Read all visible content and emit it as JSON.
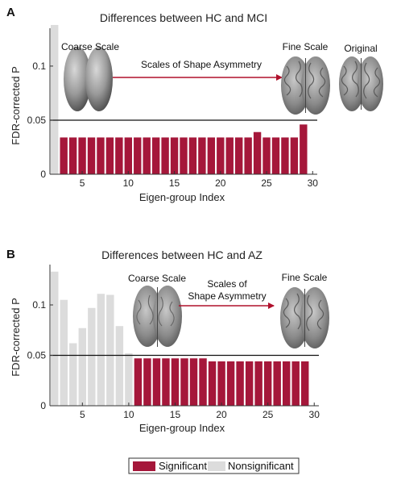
{
  "colors": {
    "significant": "#a5173a",
    "nonsignificant": "#dcdcdc",
    "threshold": "#111111",
    "arrow": "#b0102c"
  },
  "legend": {
    "significant": "Significant",
    "nonsignificant": "Nonsignificant"
  },
  "chart_data": [
    {
      "panel": "A",
      "type": "bar",
      "title": "Differences between HC and MCI",
      "xlabel": "Eigen-group Index",
      "ylabel": "FDR-corrected P",
      "xlim": [
        1.5,
        30.5
      ],
      "ylim": [
        0,
        0.135
      ],
      "xticks": [
        5,
        10,
        15,
        20,
        25,
        30
      ],
      "yticks": [
        0,
        0.05,
        0.1
      ],
      "ytick_labels": [
        "0",
        "0.05",
        "0.1"
      ],
      "threshold": 0.05,
      "x": [
        2,
        3,
        4,
        5,
        6,
        7,
        8,
        9,
        10,
        11,
        12,
        13,
        14,
        15,
        16,
        17,
        18,
        19,
        20,
        21,
        22,
        23,
        24,
        25,
        26,
        27,
        28,
        29
      ],
      "values": [
        0.138,
        0.034,
        0.034,
        0.034,
        0.034,
        0.034,
        0.034,
        0.034,
        0.034,
        0.034,
        0.034,
        0.034,
        0.034,
        0.034,
        0.034,
        0.034,
        0.034,
        0.034,
        0.034,
        0.034,
        0.034,
        0.034,
        0.039,
        0.034,
        0.034,
        0.034,
        0.034,
        0.046
      ],
      "significant": [
        false,
        true,
        true,
        true,
        true,
        true,
        true,
        true,
        true,
        true,
        true,
        true,
        true,
        true,
        true,
        true,
        true,
        true,
        true,
        true,
        true,
        true,
        true,
        true,
        true,
        true,
        true,
        true
      ],
      "annotations": {
        "coarse": "Coarse Scale",
        "arrow": [
          "Scales of Shape Asymmetry"
        ],
        "fine": "Fine Scale",
        "original": "Original"
      }
    },
    {
      "panel": "B",
      "type": "bar",
      "title": "Differences between HC and AZ",
      "xlabel": "Eigen-group Index",
      "ylabel": "FDR-corrected P",
      "xlim": [
        1.5,
        30.5
      ],
      "ylim": [
        0,
        0.14
      ],
      "xticks": [
        5,
        10,
        15,
        20,
        25,
        30
      ],
      "yticks": [
        0,
        0.05,
        0.1
      ],
      "ytick_labels": [
        "0",
        "0.05",
        "0.1"
      ],
      "threshold": 0.05,
      "x": [
        2,
        3,
        4,
        5,
        6,
        7,
        8,
        9,
        10,
        11,
        12,
        13,
        14,
        15,
        16,
        17,
        18,
        19,
        20,
        21,
        22,
        23,
        24,
        25,
        26,
        27,
        28,
        29
      ],
      "values": [
        0.133,
        0.105,
        0.062,
        0.077,
        0.097,
        0.111,
        0.11,
        0.079,
        0.052,
        0.047,
        0.047,
        0.047,
        0.047,
        0.047,
        0.047,
        0.047,
        0.047,
        0.044,
        0.044,
        0.044,
        0.044,
        0.044,
        0.044,
        0.044,
        0.044,
        0.044,
        0.044,
        0.044
      ],
      "significant": [
        false,
        false,
        false,
        false,
        false,
        false,
        false,
        false,
        false,
        true,
        true,
        true,
        true,
        true,
        true,
        true,
        true,
        true,
        true,
        true,
        true,
        true,
        true,
        true,
        true,
        true,
        true,
        true
      ],
      "annotations": {
        "coarse": "Coarse Scale",
        "arrow": [
          "Scales of",
          "Shape Asymmetry"
        ],
        "fine": "Fine Scale"
      }
    }
  ]
}
